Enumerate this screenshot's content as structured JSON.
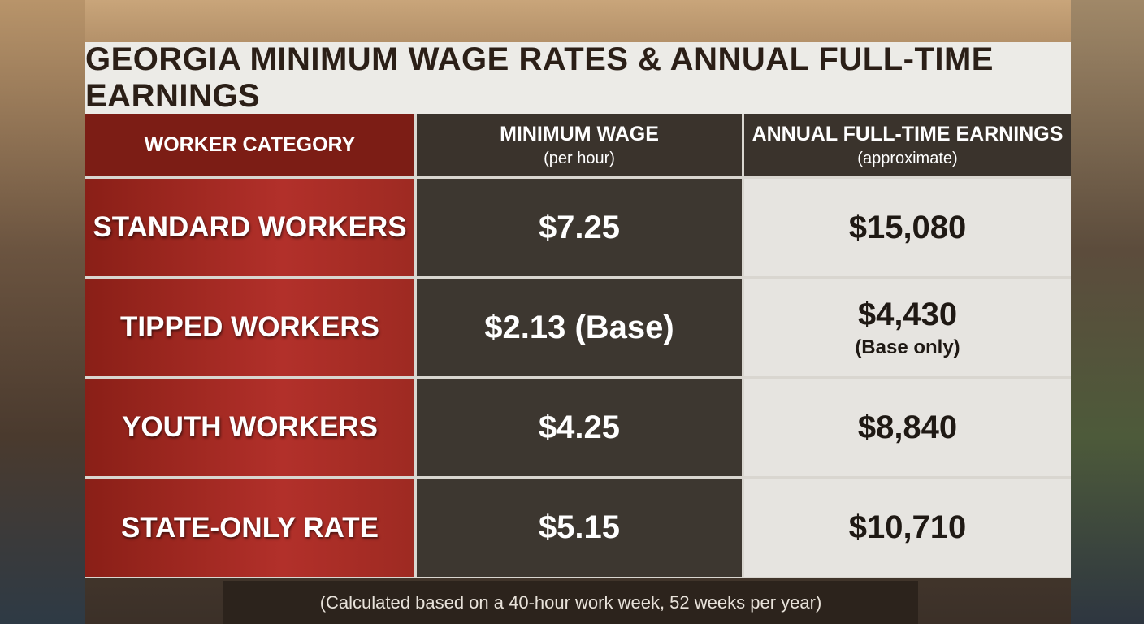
{
  "title": "GEORGIA MINIMUM WAGE RATES & ANNUAL FULL-TIME EARNINGS",
  "table": {
    "header": [
      {
        "title": "WORKER CATEGORY"
      },
      {
        "title": "MINIMUM WAGE",
        "subtitle": "(per hour)"
      },
      {
        "title": "ANNUAL FULL-TIME EARNINGS",
        "subtitle": "(approximate)"
      }
    ],
    "rows": [
      {
        "category": "STANDARD WORKERS",
        "wage": "$7.25",
        "earnings": "$15,080"
      },
      {
        "category": "TIPPED WORKERS",
        "wage": "$2.13 (Base)",
        "earnings": "$4,430",
        "earnings_note": "(Base only)"
      },
      {
        "category": "YOUTH WORKERS",
        "wage": "$4.25",
        "earnings": "$8,840"
      },
      {
        "category": "STATE-ONLY RATE",
        "wage": "$5.15",
        "earnings": "$10,710"
      }
    ]
  },
  "footnote": "(Calculated based on a 40-hour work week, 52 weeks per year)"
}
